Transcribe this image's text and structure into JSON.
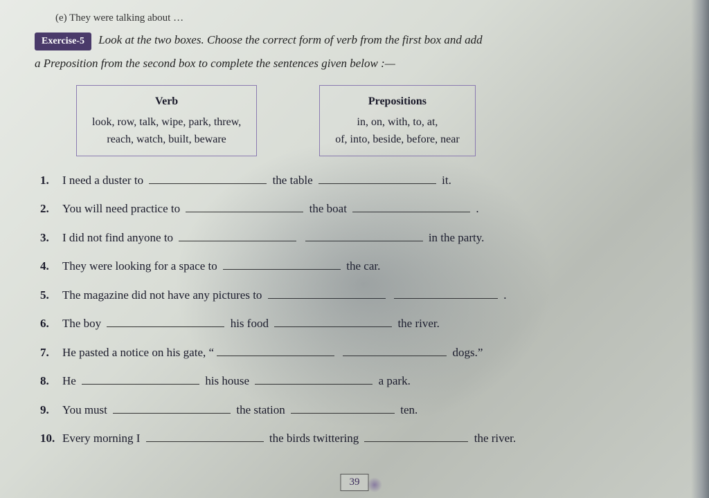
{
  "topline": "(e)   They were talking about …",
  "exercise": {
    "badge": "Exercise-5",
    "instructions_line1": "Look at the two boxes. Choose the correct form of verb from the first box and add",
    "instructions_line2": "a Preposition from the second box to complete the sentences given below :—"
  },
  "boxes": {
    "verb": {
      "title": "Verb",
      "line1": "look, row, talk, wipe, park, threw,",
      "line2": "reach, watch, built, beware"
    },
    "prepositions": {
      "title": "Prepositions",
      "line1": "in, on, with, to, at,",
      "line2": "of, into, beside, before, near"
    }
  },
  "questions": [
    {
      "parts": [
        "I need a duster to ",
        "BLANK",
        " the table ",
        "BLANK",
        " it."
      ]
    },
    {
      "parts": [
        "You will need practice to ",
        "BLANK",
        " the boat ",
        "BLANK",
        " ."
      ]
    },
    {
      "parts": [
        "I did not find anyone to ",
        "BLANK",
        " ",
        "BLANK",
        " in the party."
      ]
    },
    {
      "parts": [
        "They were looking for a space to ",
        "BLANK",
        " the car."
      ]
    },
    {
      "parts": [
        "The magazine did not have any pictures to ",
        "BLANK",
        " ",
        "BLANK_SHORT",
        " ."
      ]
    },
    {
      "parts": [
        "The boy ",
        "BLANK",
        " his food ",
        "BLANK",
        " the river."
      ]
    },
    {
      "parts": [
        "He pasted a notice on his gate, “",
        "BLANK",
        " ",
        "BLANK_SHORT",
        " dogs.”"
      ]
    },
    {
      "parts": [
        "He ",
        "BLANK",
        " his house ",
        "BLANK",
        " a park."
      ]
    },
    {
      "parts": [
        "You must ",
        "BLANK",
        " the station ",
        "BLANK_SHORT",
        " ten."
      ]
    },
    {
      "parts": [
        "Every morning I ",
        "BLANK",
        " the birds twittering ",
        "BLANK_SHORT",
        " the river."
      ]
    }
  ],
  "page_number": "39",
  "colors": {
    "badge_bg": "#4a3a6a",
    "box_border": "#8a7ab0",
    "text": "#1a1a2a"
  }
}
